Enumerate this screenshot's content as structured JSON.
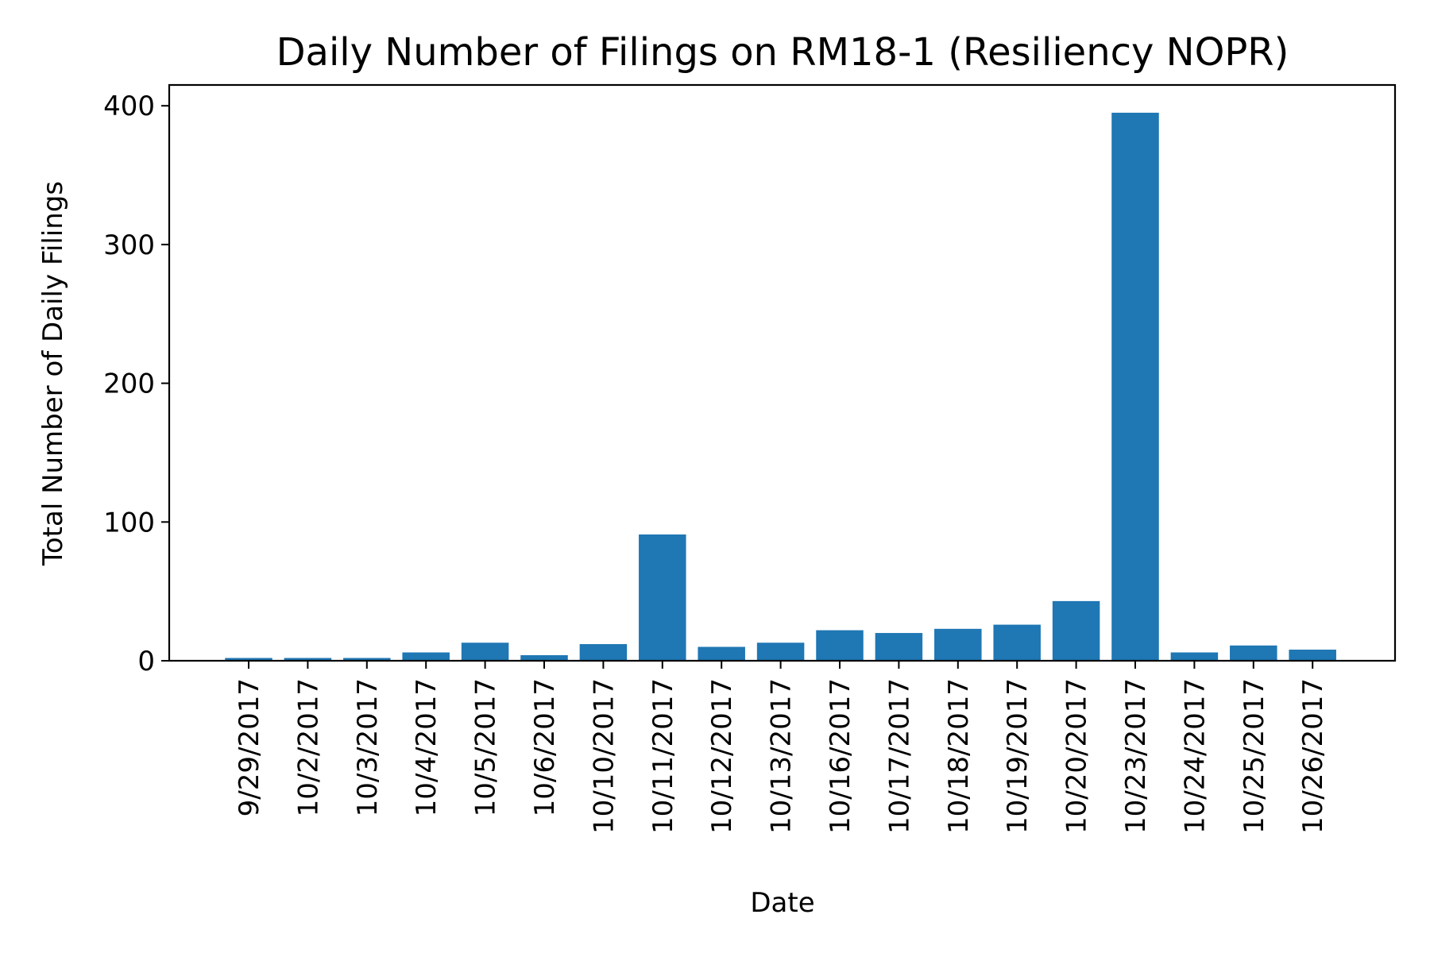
{
  "chart_data": {
    "type": "bar",
    "title": "Daily Number of Filings on RM18-1 (Resiliency NOPR)",
    "xlabel": "Date",
    "ylabel": "Total Number of Daily Filings",
    "categories": [
      "9/29/2017",
      "10/2/2017",
      "10/3/2017",
      "10/4/2017",
      "10/5/2017",
      "10/6/2017",
      "10/10/2017",
      "10/11/2017",
      "10/12/2017",
      "10/13/2017",
      "10/16/2017",
      "10/17/2017",
      "10/18/2017",
      "10/19/2017",
      "10/20/2017",
      "10/23/2017",
      "10/24/2017",
      "10/25/2017",
      "10/26/2017"
    ],
    "values": [
      2,
      2,
      2,
      6,
      13,
      4,
      12,
      91,
      10,
      13,
      22,
      20,
      23,
      26,
      43,
      395,
      6,
      11,
      8
    ],
    "ylim": [
      0,
      415
    ],
    "yticks": [
      0,
      100,
      200,
      300,
      400
    ],
    "grid": false,
    "bar_color": "#1f77b4"
  }
}
